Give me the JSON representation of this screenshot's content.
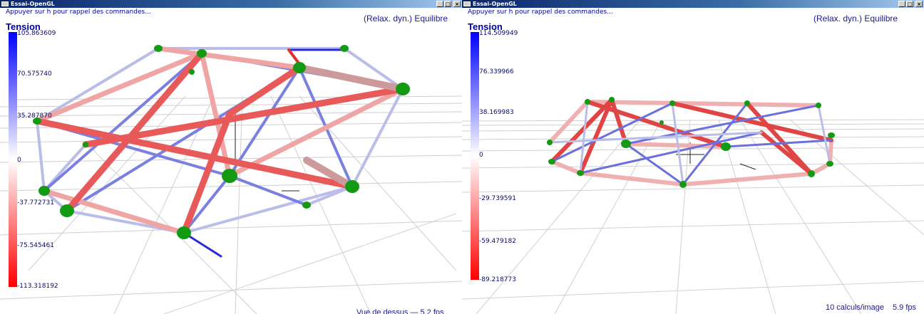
{
  "windows": [
    {
      "title": "Essai-OpenGL",
      "hint": "Appuyer sur h pour rappel des commandes...",
      "mode": "(Relax. dyn.) Equilibre",
      "legend": {
        "title": "Tension",
        "ticks": [
          "105.863609",
          "70.575740",
          "35.287870",
          "0",
          "-37.772731",
          "-75.545461",
          "-113.318192"
        ],
        "max": 105.863609,
        "min": -113.318192
      },
      "bottom_text": "Vue de dessus — 5.2 fps",
      "buttons": [
        "_",
        "□",
        "×"
      ]
    },
    {
      "title": "Essai-OpenGL",
      "hint": "Appuyer sur h pour rappel des commandes...",
      "mode": "(Relax. dyn.) Equilibre",
      "legend": {
        "title": "Tension",
        "ticks": [
          "114.509949",
          "76.339966",
          "38.169983",
          "0",
          "-29.739591",
          "-59.479182",
          "-89.218773"
        ],
        "max": 114.509949,
        "min": -89.218773
      },
      "stats": {
        "calcs": "10 calculs/image",
        "fps": "5.9 fps"
      },
      "buttons": [
        "_",
        "□",
        "×"
      ]
    }
  ],
  "colors": {
    "title_bar": "#0a246a",
    "text": "#0000a0",
    "tension_positive": "#0000ff",
    "tension_negative": "#ff0000",
    "node": "#139a13",
    "grid": "#c8c8c8"
  }
}
